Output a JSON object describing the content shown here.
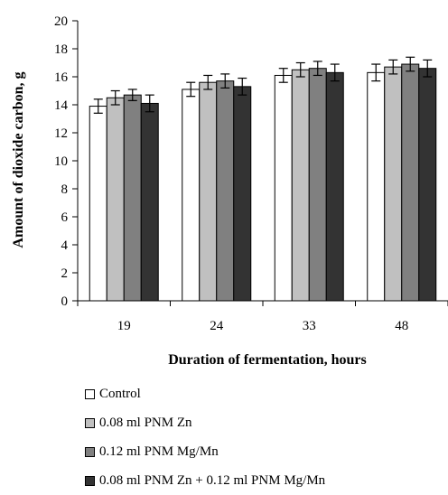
{
  "chart_data": {
    "type": "bar",
    "title": "",
    "xlabel": "Duration of fermentation, hours",
    "ylabel": "Amount of dioxide carbon, g",
    "categories": [
      "19",
      "24",
      "33",
      "48"
    ],
    "ylim": [
      0,
      20
    ],
    "yticks": [
      "0",
      "2",
      "4",
      "6",
      "8",
      "10",
      "12",
      "14",
      "16",
      "18",
      "20"
    ],
    "grid": false,
    "legend_position": "bottom",
    "series": [
      {
        "name": "Control",
        "color": "#ffffff",
        "values": [
          13.9,
          15.1,
          16.1,
          16.3
        ],
        "errors": [
          0.5,
          0.5,
          0.5,
          0.6
        ]
      },
      {
        "name": "0.08 ml PNM Zn",
        "color": "#c0c0c0",
        "values": [
          14.5,
          15.6,
          16.5,
          16.7
        ],
        "errors": [
          0.5,
          0.5,
          0.5,
          0.5
        ]
      },
      {
        "name": "0.12 ml PNM Mg/Mn",
        "color": "#808080",
        "values": [
          14.7,
          15.7,
          16.6,
          16.9
        ],
        "errors": [
          0.4,
          0.5,
          0.5,
          0.5
        ]
      },
      {
        "name": "0.08 ml PNM Zn + 0.12 ml PNM Mg/Mn",
        "color": "#333333",
        "values": [
          14.1,
          15.3,
          16.3,
          16.6
        ],
        "errors": [
          0.6,
          0.6,
          0.6,
          0.6
        ]
      }
    ]
  }
}
